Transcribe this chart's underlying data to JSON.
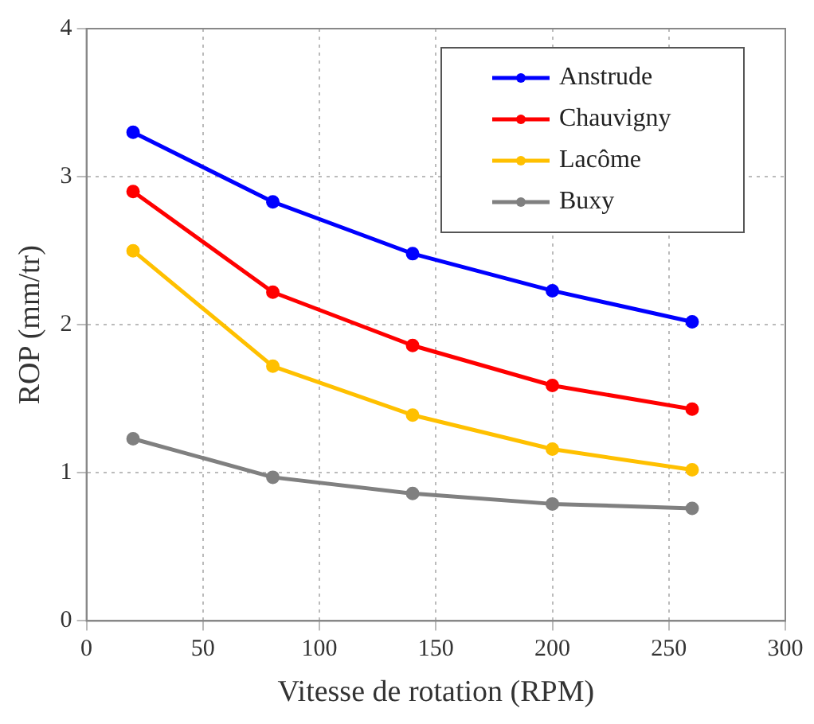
{
  "chart_data": {
    "type": "line",
    "xlabel": "Vitesse de rotation (RPM)",
    "ylabel": "ROP (mm/tr)",
    "x": [
      20,
      80,
      140,
      200,
      260
    ],
    "series": [
      {
        "name": "Anstrude",
        "color": "#0000ff",
        "values": [
          3.3,
          2.83,
          2.48,
          2.23,
          2.02
        ]
      },
      {
        "name": "Chauvigny",
        "color": "#ff0000",
        "values": [
          2.9,
          2.22,
          1.86,
          1.59,
          1.43
        ]
      },
      {
        "name": "Lacôme",
        "color": "#ffc000",
        "values": [
          2.5,
          1.72,
          1.39,
          1.16,
          1.02
        ]
      },
      {
        "name": "Buxy",
        "color": "#808080",
        "values": [
          1.23,
          0.97,
          0.86,
          0.79,
          0.76
        ]
      }
    ],
    "xlim": [
      0,
      300
    ],
    "xticks": [
      0,
      50,
      100,
      150,
      200,
      250,
      300
    ],
    "ylim": [
      0,
      4
    ],
    "yticks": [
      0,
      1,
      2,
      3,
      4
    ],
    "grid": true,
    "legend": "top right",
    "marker": "circle",
    "line_style": "solid"
  }
}
